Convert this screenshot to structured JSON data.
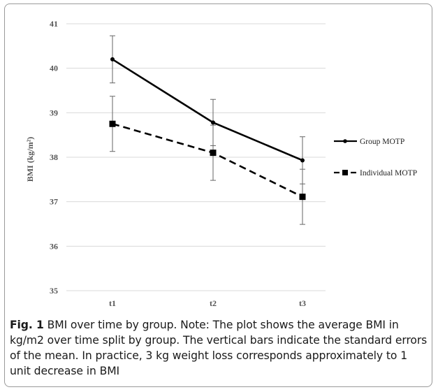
{
  "chart_data": {
    "type": "line",
    "categories": [
      "t1",
      "t2",
      "t3"
    ],
    "ylabel": "BMI (kg/m²)",
    "ylim": [
      35,
      41
    ],
    "yticks": [
      35,
      36,
      37,
      38,
      39,
      40,
      41
    ],
    "grid": true,
    "legend": "right",
    "series": [
      {
        "name": "Group MOTP",
        "values": [
          40.2,
          38.78,
          37.93
        ],
        "errors": [
          0.53,
          0.52,
          0.53
        ],
        "line_style": "solid",
        "marker": "circle",
        "color": "#000000"
      },
      {
        "name": "Individual MOTP",
        "values": [
          38.75,
          38.1,
          37.11
        ],
        "errors": [
          0.62,
          0.62,
          0.62
        ],
        "line_style": "dashed",
        "marker": "square",
        "color": "#000000"
      }
    ]
  },
  "caption": {
    "label": "Fig. 1",
    "text": " BMI over time by group. Note: The plot shows the average BMI in kg/m2 over time split by group. The vertical bars indicate the standard errors of the mean. In practice, 3 kg weight loss corresponds approximately to 1 unit decrease in BMI"
  }
}
